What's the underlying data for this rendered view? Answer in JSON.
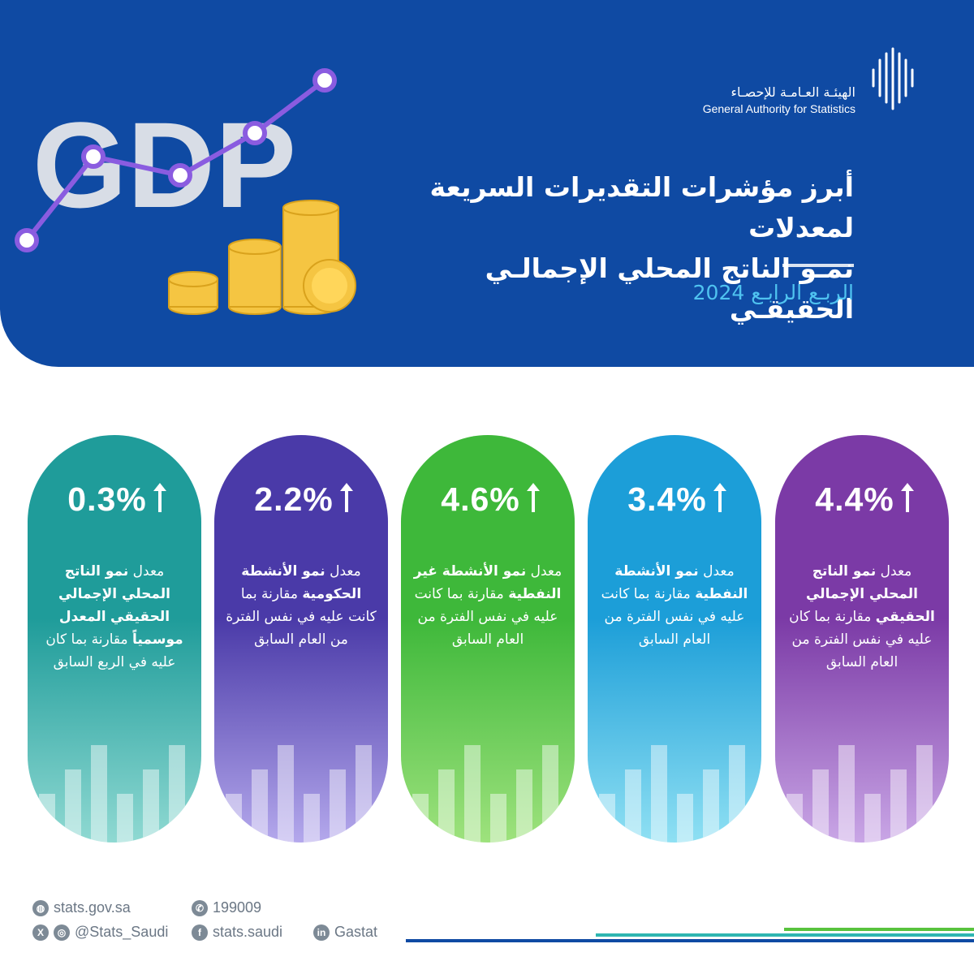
{
  "header": {
    "org_name_ar": "الهيئـة العـامـة للإحصـاء",
    "org_name_en": "General Authority for Statistics",
    "title_line1": "أبرز مؤشرات التقديرات السريعة لمعدلات",
    "title_line2": "نمـو الناتج المحلي الإجمالـي الحقيقـي",
    "period": "الربـع الرابـع 2024",
    "art_text": "GDP"
  },
  "cards": [
    {
      "value": "4.4%",
      "desc_plain1": "معدل",
      "desc_bold1": "نمو الناتج المحلي الإجمالي الحقيقي",
      "desc_plain2": "مقارنة بما كان عليه في نفس الفترة من العام السابق",
      "desc_bold2": "",
      "desc_plain3": "",
      "color_top": "#7b3aa6",
      "color_bottom": "#c9a6e6"
    },
    {
      "value": "3.4%",
      "desc_plain1": "معدل",
      "desc_bold1": "نمو الأنشطة النفطية",
      "desc_plain2": "مقارنة بما كانت عليه في نفس الفترة من العام السابق",
      "desc_bold2": "",
      "desc_plain3": "",
      "color_top": "#1c9ed8",
      "color_bottom": "#8fe0f3"
    },
    {
      "value": "4.6%",
      "desc_plain1": "معدل",
      "desc_bold1": "نمو الأنشطة غير النفطية",
      "desc_plain2": "مقارنة بما كانت عليه في نفس الفترة من العام السابق",
      "desc_bold2": "",
      "desc_plain3": "",
      "color_top": "#3eb83a",
      "color_bottom": "#9ee27d"
    },
    {
      "value": "2.2%",
      "desc_plain1": "معدل",
      "desc_bold1": "نمو الأنشطة الحكومية",
      "desc_plain2": "مقارنة بما كانت عليه في نفس الفترة من العام السابق",
      "desc_bold2": "",
      "desc_plain3": "",
      "color_top": "#4a3aa8",
      "color_bottom": "#b4a8ec"
    },
    {
      "value": "0.3%",
      "desc_plain1": "معدل",
      "desc_bold1": "نمو الناتج المحلي الإجمالي الحقيقي",
      "desc_plain2": "",
      "desc_bold2": "المعدل موسمياً",
      "desc_plain3": "مقارنة بما كان عليه في الربع السابق",
      "color_top": "#1f9c9a",
      "color_bottom": "#8fd9d2"
    }
  ],
  "footer": {
    "website": "stats.gov.sa",
    "phone": "199009",
    "handle": "@Stats_Saudi",
    "facebook": "stats.saudi",
    "linkedin": "Gastat"
  }
}
